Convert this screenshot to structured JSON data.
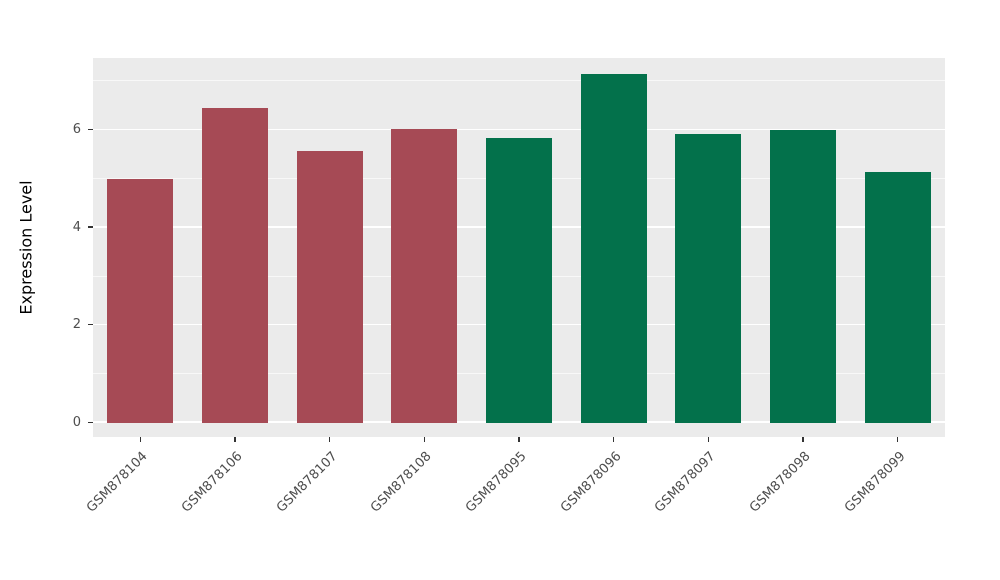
{
  "chart_data": {
    "type": "bar",
    "title": "",
    "xlabel": "",
    "ylabel": "Expression Level",
    "categories": [
      "GSM878104",
      "GSM878106",
      "GSM878107",
      "GSM878108",
      "GSM878095",
      "GSM878096",
      "GSM878097",
      "GSM878098",
      "GSM878099"
    ],
    "values": [
      5.0,
      6.45,
      5.58,
      6.02,
      5.85,
      7.15,
      5.92,
      6.0,
      5.15
    ],
    "bar_colors": [
      "#A64A55",
      "#A64A55",
      "#A64A55",
      "#A64A55",
      "#03714B",
      "#03714B",
      "#03714B",
      "#03714B",
      "#03714B"
    ],
    "group_colors": {
      "red_group": "#A64A55",
      "green_group": "#03714B"
    },
    "ylim": [
      0,
      7.5
    ],
    "yticks": [
      0,
      2,
      4,
      6
    ],
    "minor_yticks": [
      1,
      3,
      5,
      7
    ],
    "grid": "on",
    "legend": "none",
    "panel_background": "#EBEBEB",
    "gridline_color": "#FFFFFF"
  }
}
